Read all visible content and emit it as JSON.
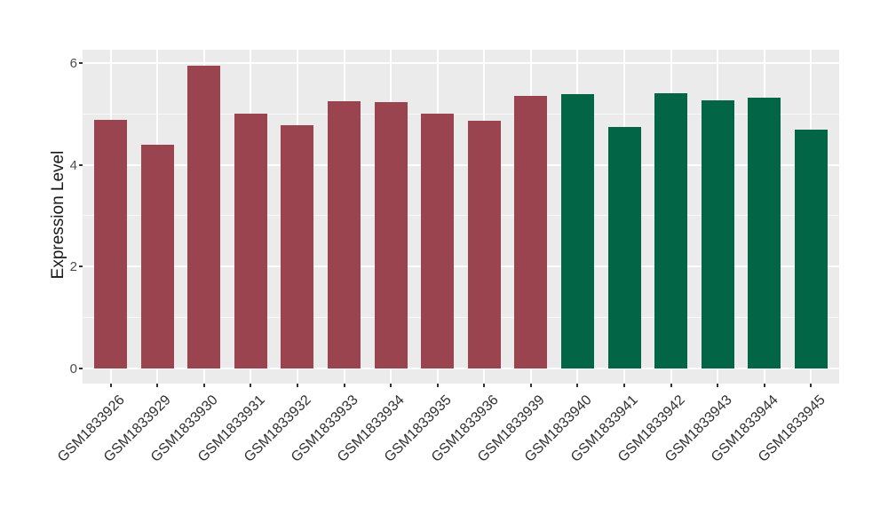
{
  "chart_data": {
    "type": "bar",
    "title": "",
    "xlabel": "",
    "ylabel": "Expression Level",
    "categories": [
      "GSM1833926",
      "GSM1833929",
      "GSM1833930",
      "GSM1833931",
      "GSM1833932",
      "GSM1833933",
      "GSM1833934",
      "GSM1833935",
      "GSM1833936",
      "GSM1833939",
      "GSM1833940",
      "GSM1833941",
      "GSM1833942",
      "GSM1833943",
      "GSM1833944",
      "GSM1833945"
    ],
    "values": [
      4.89,
      4.4,
      5.95,
      5.01,
      4.78,
      5.24,
      5.23,
      5.0,
      4.86,
      5.35,
      5.38,
      4.74,
      5.41,
      5.26,
      5.32,
      4.69
    ],
    "bar_colors": [
      "#9A4450",
      "#9A4450",
      "#9A4450",
      "#9A4450",
      "#9A4450",
      "#9A4450",
      "#9A4450",
      "#9A4450",
      "#9A4450",
      "#9A4450",
      "#026646",
      "#026646",
      "#026646",
      "#026646",
      "#026646",
      "#026646"
    ],
    "yticks": [
      0,
      2,
      4,
      6
    ],
    "yticks_minor": [
      1,
      3,
      5
    ],
    "ylim": [
      -0.3,
      6.26
    ],
    "legend": "none",
    "grid": "on",
    "colors": {
      "panel_background": "#EBEBEB",
      "gridline": "#FFFFFF",
      "tick_mark": "#333333",
      "tick_text": "#4D4D4D",
      "x_label_text": "#303030",
      "axis_title_text": "#1A1A1A",
      "group1_fill": "#9A4450",
      "group2_fill": "#026646"
    }
  }
}
